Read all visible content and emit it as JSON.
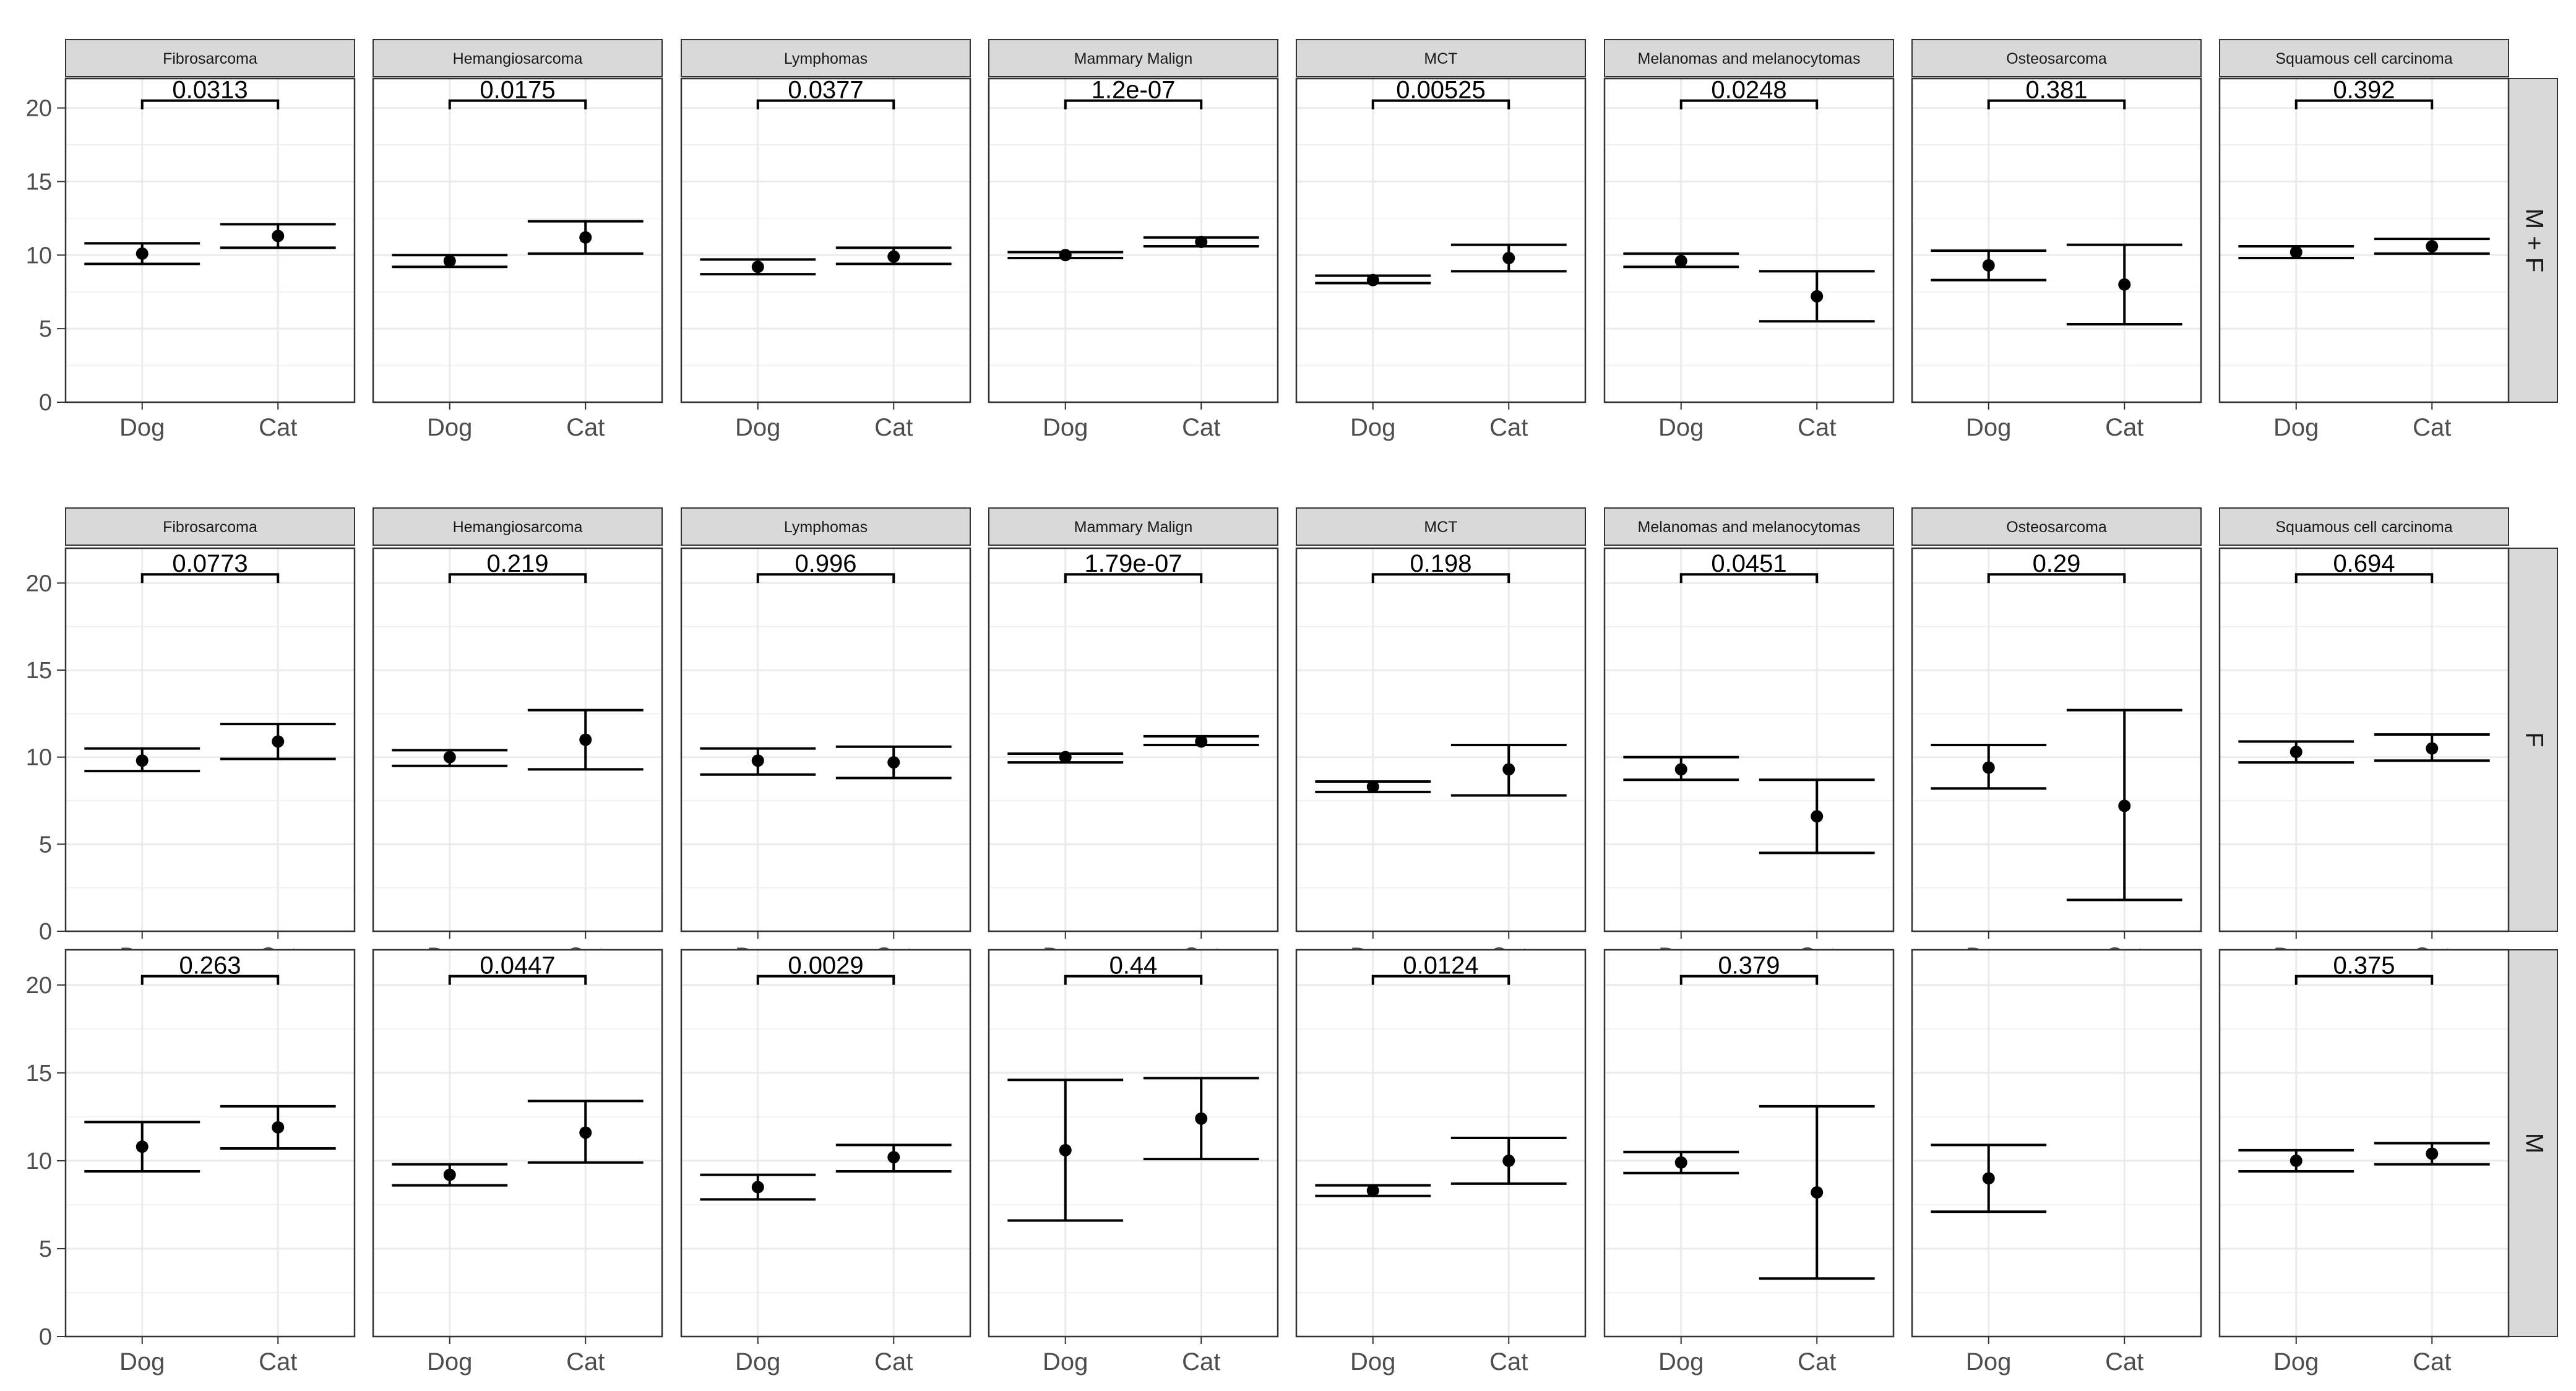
{
  "chart_data": {
    "type": "scatter",
    "title": "",
    "categories": [
      "Dog",
      "Cat"
    ],
    "facets": {
      "columns": [
        "Fibrosarcoma",
        "Hemangiosarcoma",
        "Lymphomas",
        "Mammary Malign",
        "MCT",
        "Melanomas and melanocytomas",
        "Osteosarcoma",
        "Squamous cell carcinoma"
      ],
      "rows": [
        "M + F",
        "F",
        "M"
      ]
    },
    "ylim": [
      0,
      22
    ],
    "yticks": [
      0,
      5,
      10,
      15,
      20
    ],
    "grid": true,
    "panels": [
      {
        "row": "M + F",
        "col": "Fibrosarcoma",
        "p": "0.0313",
        "dog": {
          "mean": 10.1,
          "lo": 9.4,
          "hi": 10.8
        },
        "cat": {
          "mean": 11.3,
          "lo": 10.5,
          "hi": 12.1
        }
      },
      {
        "row": "M + F",
        "col": "Hemangiosarcoma",
        "p": "0.0175",
        "dog": {
          "mean": 9.6,
          "lo": 9.2,
          "hi": 10.0
        },
        "cat": {
          "mean": 11.2,
          "lo": 10.1,
          "hi": 12.3
        }
      },
      {
        "row": "M + F",
        "col": "Lymphomas",
        "p": "0.0377",
        "dog": {
          "mean": 9.2,
          "lo": 8.7,
          "hi": 9.7
        },
        "cat": {
          "mean": 9.9,
          "lo": 9.4,
          "hi": 10.5
        }
      },
      {
        "row": "M + F",
        "col": "Mammary Malign",
        "p": "1.2e-07",
        "dog": {
          "mean": 10.0,
          "lo": 9.8,
          "hi": 10.2
        },
        "cat": {
          "mean": 10.9,
          "lo": 10.6,
          "hi": 11.2
        }
      },
      {
        "row": "M + F",
        "col": "MCT",
        "p": "0.00525",
        "dog": {
          "mean": 8.3,
          "lo": 8.1,
          "hi": 8.6
        },
        "cat": {
          "mean": 9.8,
          "lo": 8.9,
          "hi": 10.7
        }
      },
      {
        "row": "M + F",
        "col": "Melanomas and melanocytomas",
        "p": "0.0248",
        "dog": {
          "mean": 9.6,
          "lo": 9.2,
          "hi": 10.1
        },
        "cat": {
          "mean": 7.2,
          "lo": 5.5,
          "hi": 8.9
        }
      },
      {
        "row": "M + F",
        "col": "Osteosarcoma",
        "p": "0.381",
        "dog": {
          "mean": 9.3,
          "lo": 8.3,
          "hi": 10.3
        },
        "cat": {
          "mean": 8.0,
          "lo": 5.3,
          "hi": 10.7
        }
      },
      {
        "row": "M + F",
        "col": "Squamous cell carcinoma",
        "p": "0.392",
        "dog": {
          "mean": 10.2,
          "lo": 9.8,
          "hi": 10.6
        },
        "cat": {
          "mean": 10.6,
          "lo": 10.1,
          "hi": 11.1
        }
      },
      {
        "row": "F",
        "col": "Fibrosarcoma",
        "p": "0.0773",
        "dog": {
          "mean": 9.8,
          "lo": 9.2,
          "hi": 10.5
        },
        "cat": {
          "mean": 10.9,
          "lo": 9.9,
          "hi": 11.9
        }
      },
      {
        "row": "F",
        "col": "Hemangiosarcoma",
        "p": "0.219",
        "dog": {
          "mean": 10.0,
          "lo": 9.5,
          "hi": 10.4
        },
        "cat": {
          "mean": 11.0,
          "lo": 9.3,
          "hi": 12.7
        }
      },
      {
        "row": "F",
        "col": "Lymphomas",
        "p": "0.996",
        "dog": {
          "mean": 9.8,
          "lo": 9.0,
          "hi": 10.5
        },
        "cat": {
          "mean": 9.7,
          "lo": 8.8,
          "hi": 10.6
        }
      },
      {
        "row": "F",
        "col": "Mammary Malign",
        "p": "1.79e-07",
        "dog": {
          "mean": 10.0,
          "lo": 9.7,
          "hi": 10.2
        },
        "cat": {
          "mean": 10.9,
          "lo": 10.7,
          "hi": 11.2
        }
      },
      {
        "row": "F",
        "col": "MCT",
        "p": "0.198",
        "dog": {
          "mean": 8.3,
          "lo": 8.0,
          "hi": 8.6
        },
        "cat": {
          "mean": 9.3,
          "lo": 7.8,
          "hi": 10.7
        }
      },
      {
        "row": "F",
        "col": "Melanomas and melanocytomas",
        "p": "0.0451",
        "dog": {
          "mean": 9.3,
          "lo": 8.7,
          "hi": 10.0
        },
        "cat": {
          "mean": 6.6,
          "lo": 4.5,
          "hi": 8.7
        }
      },
      {
        "row": "F",
        "col": "Osteosarcoma",
        "p": "0.29",
        "dog": {
          "mean": 9.4,
          "lo": 8.2,
          "hi": 10.7
        },
        "cat": {
          "mean": 7.2,
          "lo": 1.8,
          "hi": 12.7
        }
      },
      {
        "row": "F",
        "col": "Squamous cell carcinoma",
        "p": "0.694",
        "dog": {
          "mean": 10.3,
          "lo": 9.7,
          "hi": 10.9
        },
        "cat": {
          "mean": 10.5,
          "lo": 9.8,
          "hi": 11.3
        }
      },
      {
        "row": "M",
        "col": "Fibrosarcoma",
        "p": "0.263",
        "dog": {
          "mean": 10.8,
          "lo": 9.4,
          "hi": 12.2
        },
        "cat": {
          "mean": 11.9,
          "lo": 10.7,
          "hi": 13.1
        }
      },
      {
        "row": "M",
        "col": "Hemangiosarcoma",
        "p": "0.0447",
        "dog": {
          "mean": 9.2,
          "lo": 8.6,
          "hi": 9.8
        },
        "cat": {
          "mean": 11.6,
          "lo": 9.9,
          "hi": 13.4
        }
      },
      {
        "row": "M",
        "col": "Lymphomas",
        "p": "0.0029",
        "dog": {
          "mean": 8.5,
          "lo": 7.8,
          "hi": 9.2
        },
        "cat": {
          "mean": 10.2,
          "lo": 9.4,
          "hi": 10.9
        }
      },
      {
        "row": "M",
        "col": "Mammary Malign",
        "p": "0.44",
        "dog": {
          "mean": 10.6,
          "lo": 6.6,
          "hi": 14.6
        },
        "cat": {
          "mean": 12.4,
          "lo": 10.1,
          "hi": 14.7
        }
      },
      {
        "row": "M",
        "col": "MCT",
        "p": "0.0124",
        "dog": {
          "mean": 8.3,
          "lo": 8.0,
          "hi": 8.6
        },
        "cat": {
          "mean": 10.0,
          "lo": 8.7,
          "hi": 11.3
        }
      },
      {
        "row": "M",
        "col": "Melanomas and melanocytomas",
        "p": "0.379",
        "dog": {
          "mean": 9.9,
          "lo": 9.3,
          "hi": 10.5
        },
        "cat": {
          "mean": 8.2,
          "lo": 3.3,
          "hi": 13.1
        }
      },
      {
        "row": "M",
        "col": "Osteosarcoma",
        "p": "",
        "dog": {
          "mean": 9.0,
          "lo": 7.1,
          "hi": 10.9
        },
        "cat": null
      },
      {
        "row": "M",
        "col": "Squamous cell carcinoma",
        "p": "0.375",
        "dog": {
          "mean": 10.0,
          "lo": 9.4,
          "hi": 10.6
        },
        "cat": {
          "mean": 10.4,
          "lo": 9.8,
          "hi": 11.0
        }
      }
    ]
  }
}
